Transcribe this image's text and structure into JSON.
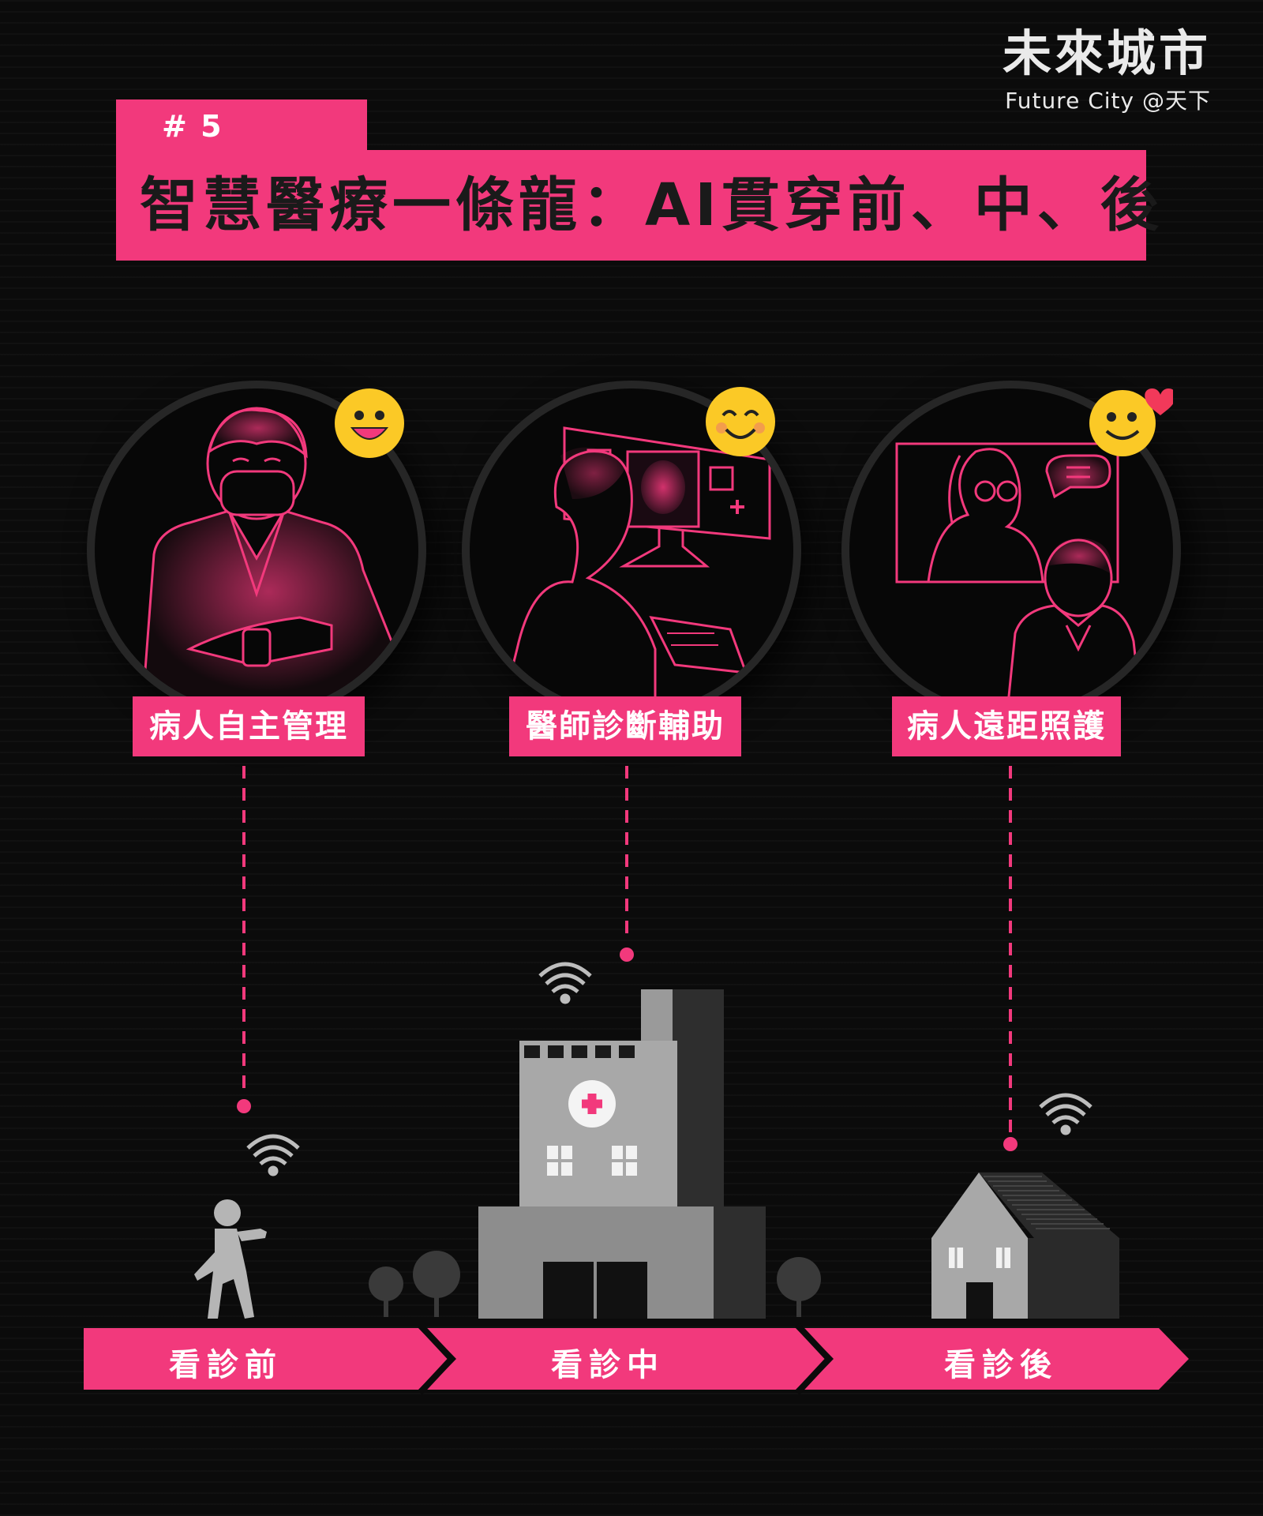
{
  "brand": {
    "name_cn": "未來城市",
    "name_en": "Future City @天下"
  },
  "header": {
    "tag": "# 5",
    "title": "智慧醫療一條龍：AI貫穿前、中、後"
  },
  "colors": {
    "accent": "#f2397c",
    "background": "#0b0b0b",
    "emoji": "#fbc926"
  },
  "scenes": [
    {
      "label": "病人自主管理",
      "icon": "patient-smartwatch-illustration",
      "emoji": "grinning-face-icon"
    },
    {
      "label": "醫師診斷輔助",
      "icon": "doctor-monitor-illustration",
      "emoji": "smiling-face-icon"
    },
    {
      "label": "病人遠距照護",
      "icon": "remote-care-illustration",
      "emoji": "heart-smile-face-icon"
    }
  ],
  "timeline": {
    "stages": [
      "看診前",
      "看診中",
      "看診後"
    ]
  }
}
